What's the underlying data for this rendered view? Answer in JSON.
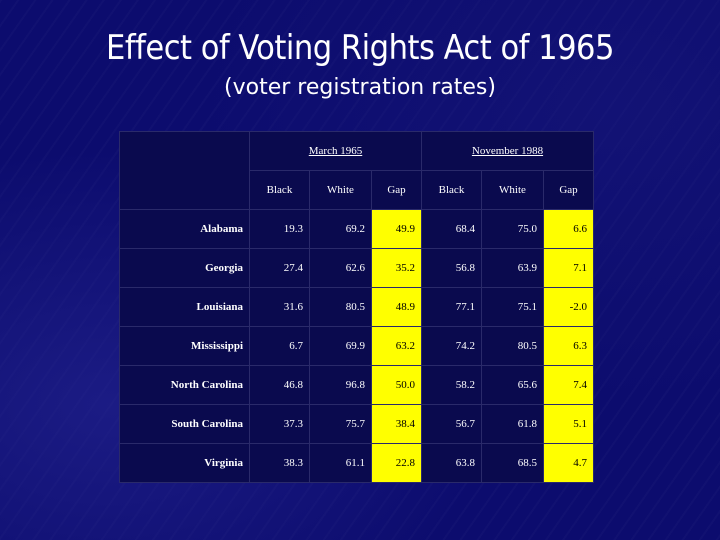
{
  "title": "Effect of Voting Rights Act of 1965",
  "subtitle": "(voter registration rates)",
  "table": {
    "groups": [
      "March 1965",
      "November 1988"
    ],
    "columns": [
      "Black",
      "White",
      "Gap",
      "Black",
      "White",
      "Gap"
    ],
    "rows": [
      {
        "state": "Alabama",
        "values": [
          "19.3",
          "69.2",
          "49.9",
          "68.4",
          "75.0",
          "6.6"
        ]
      },
      {
        "state": "Georgia",
        "values": [
          "27.4",
          "62.6",
          "35.2",
          "56.8",
          "63.9",
          "7.1"
        ]
      },
      {
        "state": "Louisiana",
        "values": [
          "31.6",
          "80.5",
          "48.9",
          "77.1",
          "75.1",
          "-2.0"
        ]
      },
      {
        "state": "Mississippi",
        "values": [
          "6.7",
          "69.9",
          "63.2",
          "74.2",
          "80.5",
          "6.3"
        ]
      },
      {
        "state": "North Carolina",
        "values": [
          "46.8",
          "96.8",
          "50.0",
          "58.2",
          "65.6",
          "7.4"
        ]
      },
      {
        "state": "South Carolina",
        "values": [
          "37.3",
          "75.7",
          "38.4",
          "56.7",
          "61.8",
          "5.1"
        ]
      },
      {
        "state": "Virginia",
        "values": [
          "38.3",
          "61.1",
          "22.8",
          "63.8",
          "68.5",
          "4.7"
        ]
      }
    ]
  },
  "colors": {
    "background": "#0c0c6e",
    "gap_highlight": "#ffff00",
    "text": "#ffffff"
  }
}
